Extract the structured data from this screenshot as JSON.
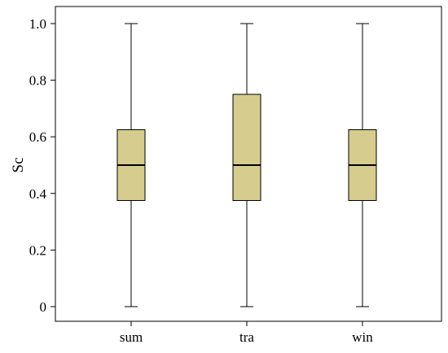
{
  "chart_data": {
    "type": "boxplot",
    "ylabel": "Sc",
    "xlabel": "",
    "ylim": [
      0,
      1.0
    ],
    "yticks": [
      "0",
      "0.2",
      "0.4",
      "0.6",
      "0.8",
      "1.0"
    ],
    "grid": false,
    "categories": [
      "sum",
      "tra",
      "win"
    ],
    "boxes": [
      {
        "category": "sum",
        "min": 0,
        "q1": 0.375,
        "median": 0.5,
        "q3": 0.625,
        "max": 1.0
      },
      {
        "category": "tra",
        "min": 0,
        "q1": 0.375,
        "median": 0.5,
        "q3": 0.75,
        "max": 1.0
      },
      {
        "category": "win",
        "min": 0,
        "q1": 0.375,
        "median": 0.5,
        "q3": 0.625,
        "max": 1.0
      }
    ],
    "colors": {
      "box_fill": "#d6cc8e",
      "stroke": "#000000"
    }
  }
}
